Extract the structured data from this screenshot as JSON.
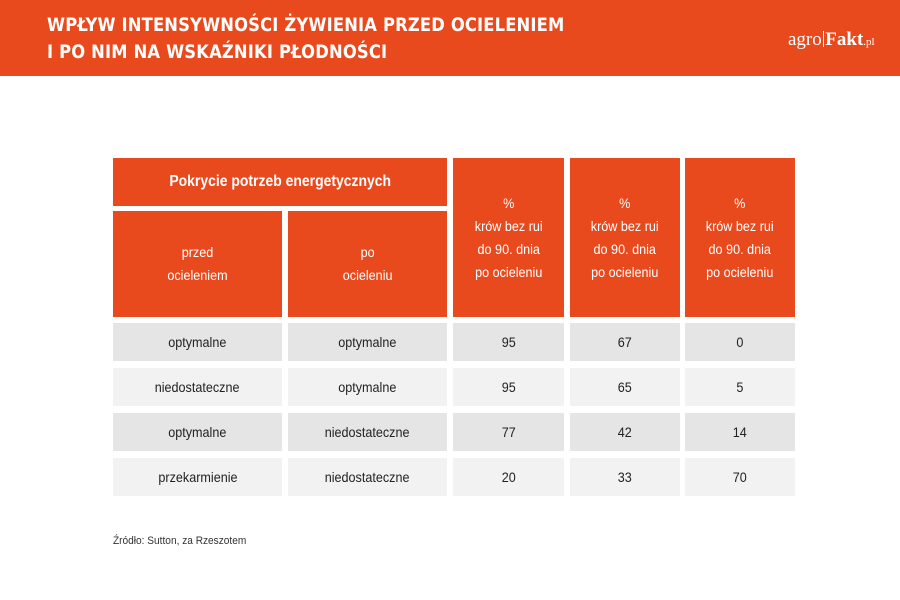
{
  "header": {
    "title_line1": "WPŁYW INTENSYWNOŚCI ŻYWIENIA PRZED OCIELENIEM",
    "title_line2": "I PO NIM NA WSKAŹNIKI PŁODNOŚCI",
    "logo_prefix": "agro",
    "logo_main": "Fakt",
    "logo_suffix": ".pl"
  },
  "chart_data": {
    "type": "table",
    "group_header": "Pokrycie potrzeb energetycznych",
    "columns": [
      "przed\nocieleniem",
      "po\nocieleniu",
      "%\nkrów bez rui\ndo 90. dnia\npo ocieleniu",
      "%\nkrów bez rui\ndo 90. dnia\npo ocieleniu",
      "%\nkrów bez rui\ndo 90. dnia\npo ocieleniu"
    ],
    "rows": [
      [
        "optymalne",
        "optymalne",
        "95",
        "67",
        "0"
      ],
      [
        "niedostateczne",
        "optymalne",
        "95",
        "65",
        "5"
      ],
      [
        "optymalne",
        "niedostateczne",
        "77",
        "42",
        "14"
      ],
      [
        "przekarmienie",
        "niedostateczne",
        "20",
        "33",
        "70"
      ]
    ]
  },
  "source": "Źródło: Sutton, za Rzeszotem",
  "colors": {
    "accent": "#e84a1e",
    "row_dark": "#e5e5e5",
    "row_light": "#f2f2f2"
  }
}
